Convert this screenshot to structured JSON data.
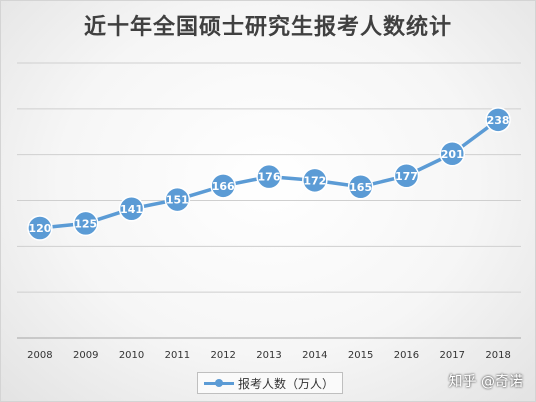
{
  "chart_data": {
    "type": "line",
    "title": "近十年全国硕士研究生报考人数统计",
    "categories": [
      "2008",
      "2009",
      "2010",
      "2011",
      "2012",
      "2013",
      "2014",
      "2015",
      "2016",
      "2017",
      "2018"
    ],
    "series": [
      {
        "name": "报考人数（万人）",
        "values": [
          120,
          125,
          141,
          151,
          166,
          176,
          172,
          165,
          177,
          201,
          238
        ]
      }
    ],
    "ylim": [
      0,
      300
    ],
    "grid": true,
    "legend": "bottom",
    "color": "#5b9bd5"
  },
  "watermark": "知乎 @奇诺"
}
